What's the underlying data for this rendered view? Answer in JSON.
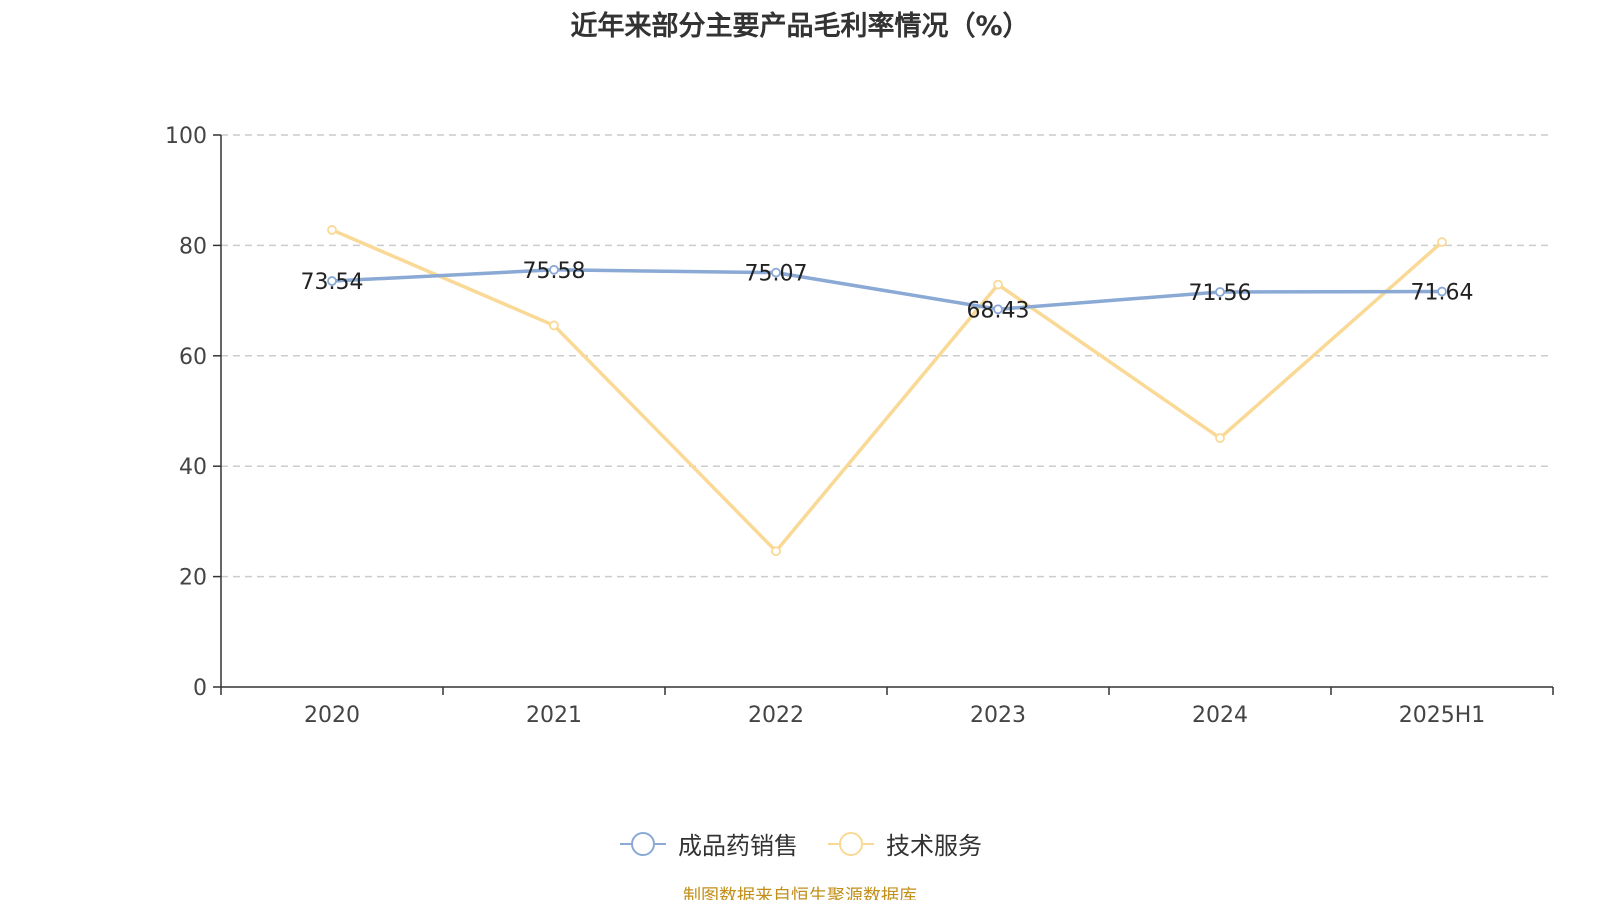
{
  "chart_data": {
    "type": "line",
    "title": "近年来部分主要产品毛利率情况（%）",
    "xlabel": "",
    "ylabel": "",
    "categories": [
      "2020",
      "2021",
      "2022",
      "2023",
      "2024",
      "2025H1"
    ],
    "ylim": [
      0,
      100
    ],
    "yticks": [
      0,
      20,
      40,
      60,
      80,
      100
    ],
    "grid": true,
    "legend_position": "bottom-center",
    "series": [
      {
        "name": "成品药销售",
        "color": "#8aa9d5",
        "values": [
          73.54,
          75.58,
          75.07,
          68.43,
          71.56,
          71.64
        ],
        "data_labels": [
          "73.54",
          "75.58",
          "75.07",
          "68.43",
          "71.56",
          "71.64"
        ]
      },
      {
        "name": "技术服务",
        "color": "#f9d995",
        "values": [
          82.8,
          65.5,
          24.6,
          72.9,
          45.1,
          80.6
        ]
      }
    ]
  },
  "footer": {
    "source": "制图数据来自恒生聚源数据库"
  }
}
